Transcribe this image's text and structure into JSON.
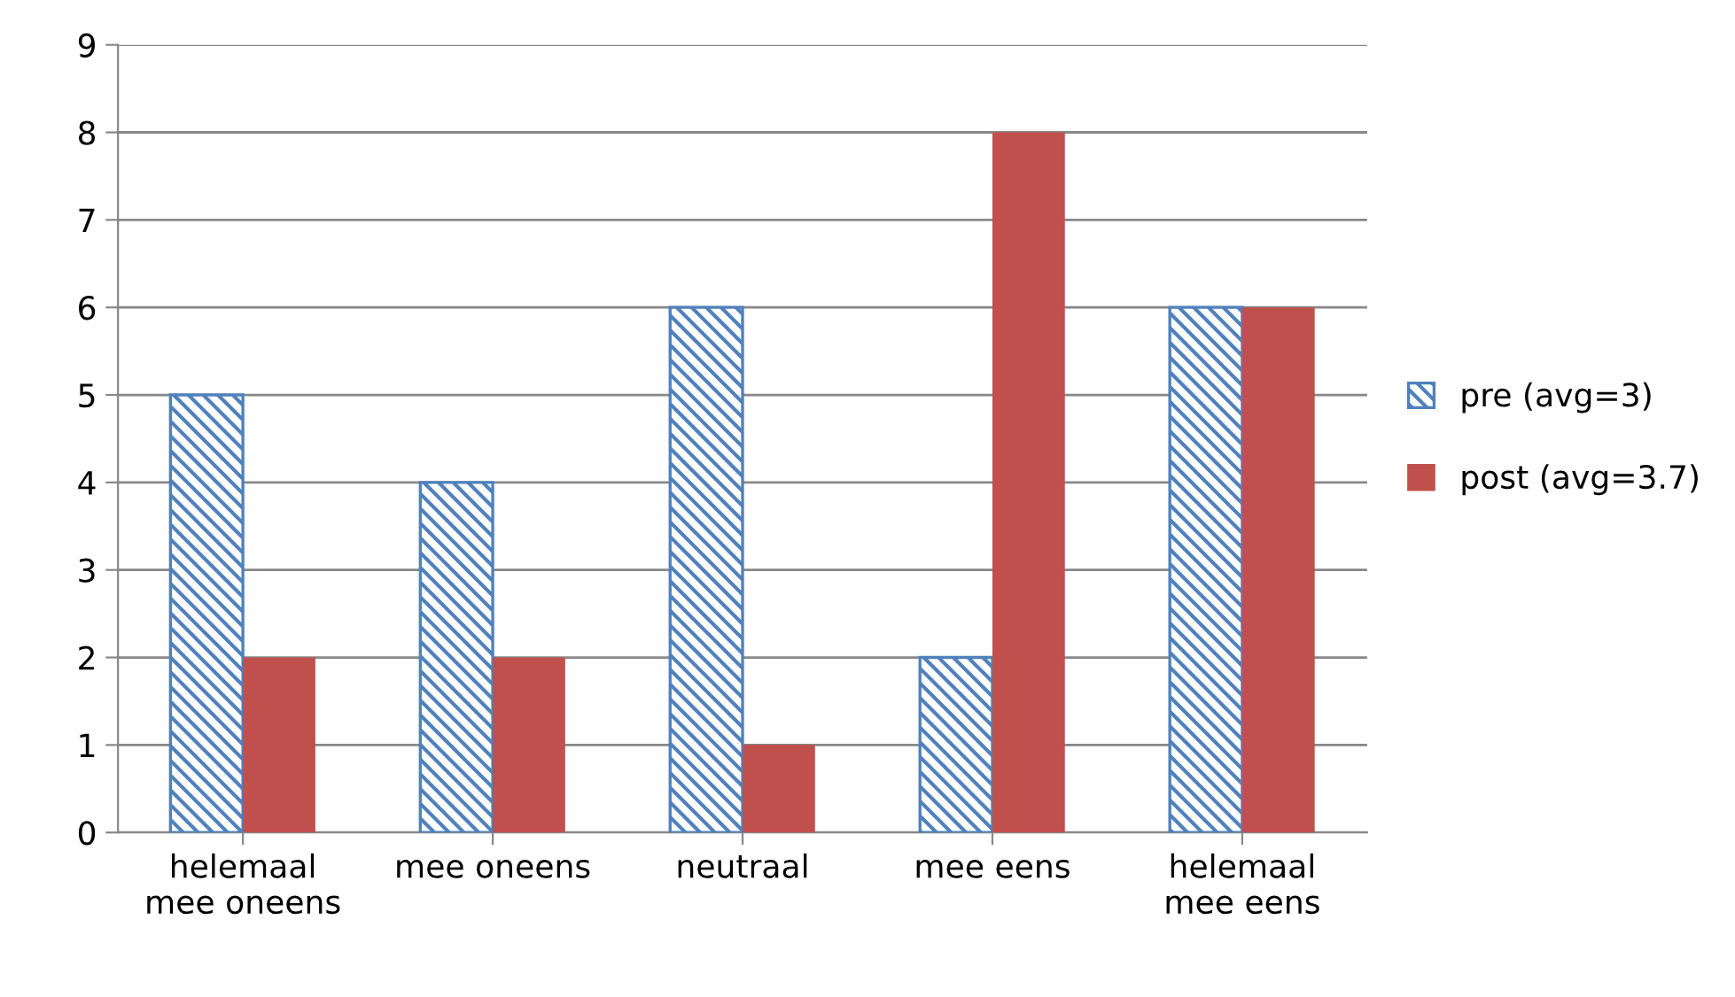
{
  "chart_data": {
    "type": "bar",
    "categories": [
      "helemaal\nmee oneens",
      "mee oneens",
      "neutraal",
      "mee eens",
      "helemaal\nmee eens"
    ],
    "series": [
      {
        "name": "pre (avg=3)",
        "color": "#4f81bd",
        "values": [
          5,
          4,
          6,
          2,
          6
        ]
      },
      {
        "name": "post (avg=3.7)",
        "color": "#c0504d",
        "values": [
          2,
          2,
          1,
          8,
          6
        ]
      }
    ],
    "ylim": [
      0,
      9
    ],
    "yticks": [
      0,
      1,
      2,
      3,
      4,
      5,
      6,
      7,
      8,
      9
    ],
    "grid": "y",
    "legend": "right"
  }
}
